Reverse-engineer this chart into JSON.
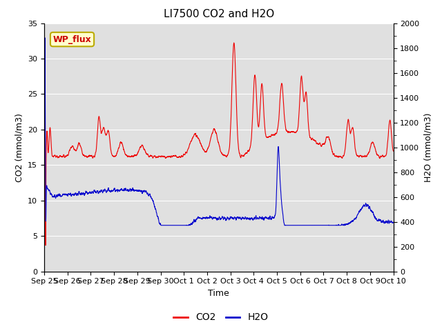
{
  "title": "LI7500 CO2 and H2O",
  "xlabel": "Time",
  "ylabel_left": "CO2 (mmol/m3)",
  "ylabel_right": "H2O (mmol/m3)",
  "ylim_left": [
    0,
    35
  ],
  "ylim_right": [
    0,
    2000
  ],
  "yticks_left": [
    0,
    5,
    10,
    15,
    20,
    25,
    30,
    35
  ],
  "yticks_right": [
    0,
    200,
    400,
    600,
    800,
    1000,
    1200,
    1400,
    1600,
    1800,
    2000
  ],
  "co2_color": "#EE0000",
  "h2o_color": "#0000CC",
  "background_color": "#FFFFFF",
  "plot_bg_color": "#E0E0E0",
  "grid_color": "#FFFFFF",
  "annotation_text": "WP_flux",
  "annotation_bg": "#FFFFCC",
  "annotation_border": "#BBAA00",
  "title_fontsize": 11,
  "axis_fontsize": 9,
  "tick_fontsize": 8,
  "linewidth": 0.8,
  "xtick_labels": [
    "Sep 25",
    "Sep 26",
    "Sep 27",
    "Sep 28",
    "Sep 29",
    "Sep 30",
    "Oct 1",
    "Oct 2",
    "Oct 3",
    "Oct 4",
    "Oct 5",
    "Oct 6",
    "Oct 7",
    "Oct 8",
    "Oct 9",
    "Oct 10"
  ]
}
